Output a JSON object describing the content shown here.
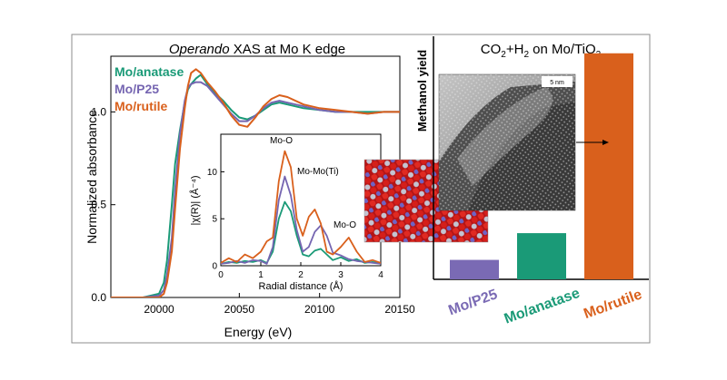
{
  "left_chart": {
    "title_italic": "Operando",
    "title_rest": " XAS at Mo K edge",
    "xlabel": "Energy (eV)",
    "ylabel": "Normalized absorbance",
    "x_ticks": [
      "20000",
      "20050",
      "20100",
      "20150"
    ],
    "y_ticks": [
      "0.0",
      "0.5",
      "1.0"
    ],
    "legend": [
      {
        "label": "Mo/anatase",
        "color": "#1a9a77"
      },
      {
        "label": "Mo/P25",
        "color": "#7565b1"
      },
      {
        "label": "Mo/rutile",
        "color": "#d9601c"
      }
    ]
  },
  "inset": {
    "xlabel": "Radial distance (Å)",
    "ylabel": "|χ(R)| (Å⁻⁴)",
    "x_ticks": [
      "0",
      "1",
      "2",
      "3",
      "4"
    ],
    "y_ticks": [
      "0",
      "5",
      "10"
    ],
    "annotations": {
      "mo_o_1": "Mo-O",
      "mo_mo": "Mo-Mo(Ti)",
      "mo_o_2": "Mo-O"
    }
  },
  "right_chart": {
    "title_pre": "CO",
    "title_sub1": "2",
    "title_mid": "+H",
    "title_sub2": "2",
    "title_post": " on Mo/TiO",
    "title_sub3": "2",
    "ylabel": "Methanol yield",
    "scale_bar": "5 nm",
    "bars": [
      {
        "label": "Mo/P25",
        "color": "#7a6ab4"
      },
      {
        "label": "Mo/anatase",
        "color": "#1a9a77"
      },
      {
        "label": "Mo/rutile",
        "color": "#d9601c"
      }
    ]
  },
  "chart_data": [
    {
      "type": "line",
      "title": "Operando XAS at Mo K edge",
      "xlabel": "Energy (eV)",
      "ylabel": "Normalized absorbance",
      "xlim": [
        19970,
        20150
      ],
      "ylim": [
        0,
        1.3
      ],
      "series": [
        {
          "name": "Mo/anatase",
          "color": "#1a9a77",
          "x": [
            19970,
            19990,
            20000,
            20003,
            20005,
            20008,
            20010,
            20013,
            20016,
            20018,
            20020,
            20023,
            20026,
            20030,
            20035,
            20040,
            20045,
            20050,
            20055,
            20060,
            20065,
            20070,
            20075,
            20080,
            20090,
            20100,
            20110,
            20120,
            20130,
            20140,
            20150
          ],
          "y": [
            0.0,
            0.0,
            0.02,
            0.08,
            0.2,
            0.5,
            0.72,
            0.9,
            1.05,
            1.12,
            1.15,
            1.18,
            1.2,
            1.15,
            1.1,
            1.06,
            1.01,
            0.97,
            0.96,
            0.98,
            1.01,
            1.04,
            1.05,
            1.04,
            1.02,
            1.01,
            1.0,
            1.0,
            1.0,
            1.0,
            1.0
          ]
        },
        {
          "name": "Mo/P25",
          "color": "#7565b1",
          "x": [
            19970,
            19990,
            20000,
            20003,
            20005,
            20008,
            20010,
            20013,
            20016,
            20018,
            20020,
            20023,
            20026,
            20030,
            20035,
            20040,
            20045,
            20050,
            20055,
            20060,
            20065,
            20070,
            20075,
            20080,
            20090,
            20100,
            20110,
            20120,
            20130,
            20140,
            20150
          ],
          "y": [
            0.0,
            0.0,
            0.01,
            0.04,
            0.12,
            0.32,
            0.58,
            0.88,
            1.06,
            1.13,
            1.15,
            1.16,
            1.16,
            1.14,
            1.09,
            1.04,
            0.99,
            0.95,
            0.95,
            0.98,
            1.02,
            1.05,
            1.06,
            1.05,
            1.03,
            1.01,
            1.0,
            1.0,
            0.99,
            1.0,
            1.0
          ]
        },
        {
          "name": "Mo/rutile",
          "color": "#d9601c",
          "x": [
            19970,
            19990,
            20000,
            20003,
            20005,
            20008,
            20010,
            20013,
            20016,
            20018,
            20020,
            20023,
            20026,
            20030,
            20035,
            20040,
            20045,
            20050,
            20055,
            20060,
            20065,
            20070,
            20075,
            20080,
            20090,
            20100,
            20110,
            20120,
            20130,
            20140,
            20150
          ],
          "y": [
            0.0,
            0.0,
            0.0,
            0.02,
            0.08,
            0.25,
            0.48,
            0.8,
            1.02,
            1.14,
            1.21,
            1.23,
            1.21,
            1.16,
            1.11,
            1.05,
            0.98,
            0.93,
            0.92,
            0.97,
            1.03,
            1.07,
            1.09,
            1.08,
            1.04,
            1.02,
            1.01,
            1.0,
            0.99,
            1.0,
            1.0
          ]
        }
      ],
      "legend_placement": "top-left"
    },
    {
      "type": "line",
      "title": "",
      "xlabel": "Radial distance (Å)",
      "ylabel": "|χ(R)| (Å⁻⁴)",
      "xlim": [
        0,
        4
      ],
      "ylim": [
        0,
        14
      ],
      "series": [
        {
          "name": "Mo/anatase",
          "color": "#1a9a77",
          "x": [
            0.0,
            0.2,
            0.4,
            0.6,
            0.8,
            1.0,
            1.15,
            1.3,
            1.45,
            1.6,
            1.75,
            1.9,
            2.05,
            2.2,
            2.35,
            2.5,
            2.65,
            2.8,
            3.0,
            3.2,
            3.4,
            3.6,
            3.8,
            4.0
          ],
          "y": [
            0.2,
            0.4,
            0.3,
            0.5,
            0.4,
            0.6,
            0.3,
            1.5,
            5.0,
            6.8,
            5.8,
            3.2,
            1.2,
            1.0,
            1.6,
            1.8,
            1.2,
            0.6,
            0.9,
            0.5,
            0.7,
            0.3,
            0.4,
            0.2
          ]
        },
        {
          "name": "Mo/P25",
          "color": "#7565b1",
          "x": [
            0.0,
            0.2,
            0.4,
            0.6,
            0.8,
            1.0,
            1.15,
            1.3,
            1.45,
            1.6,
            1.75,
            1.9,
            2.05,
            2.2,
            2.35,
            2.5,
            2.65,
            2.8,
            3.0,
            3.2,
            3.4,
            3.6,
            3.8,
            4.0
          ],
          "y": [
            0.2,
            0.3,
            0.5,
            0.3,
            0.6,
            0.5,
            0.2,
            2.0,
            7.0,
            9.5,
            7.5,
            3.8,
            1.5,
            2.0,
            3.6,
            4.3,
            3.2,
            1.4,
            1.1,
            0.7,
            0.5,
            0.4,
            0.3,
            0.2
          ]
        },
        {
          "name": "Mo/rutile",
          "color": "#d9601c",
          "x": [
            0.0,
            0.2,
            0.4,
            0.6,
            0.8,
            1.0,
            1.15,
            1.3,
            1.45,
            1.6,
            1.75,
            1.9,
            2.05,
            2.2,
            2.35,
            2.5,
            2.65,
            2.8,
            3.0,
            3.2,
            3.4,
            3.6,
            3.8,
            4.0
          ],
          "y": [
            0.3,
            0.8,
            0.4,
            1.2,
            0.8,
            1.5,
            2.6,
            3.0,
            9.0,
            12.2,
            10.5,
            5.0,
            3.2,
            5.2,
            6.0,
            4.5,
            1.5,
            1.2,
            2.0,
            3.0,
            1.5,
            0.4,
            0.6,
            0.3
          ]
        }
      ]
    },
    {
      "type": "bar",
      "title": "CO2+H2 on Mo/TiO2",
      "xlabel": "",
      "ylabel": "Methanol yield",
      "categories": [
        "Mo/P25",
        "Mo/anatase",
        "Mo/rutile"
      ],
      "values": [
        0.08,
        0.19,
        0.93
      ],
      "ylim": [
        0,
        1
      ]
    }
  ]
}
